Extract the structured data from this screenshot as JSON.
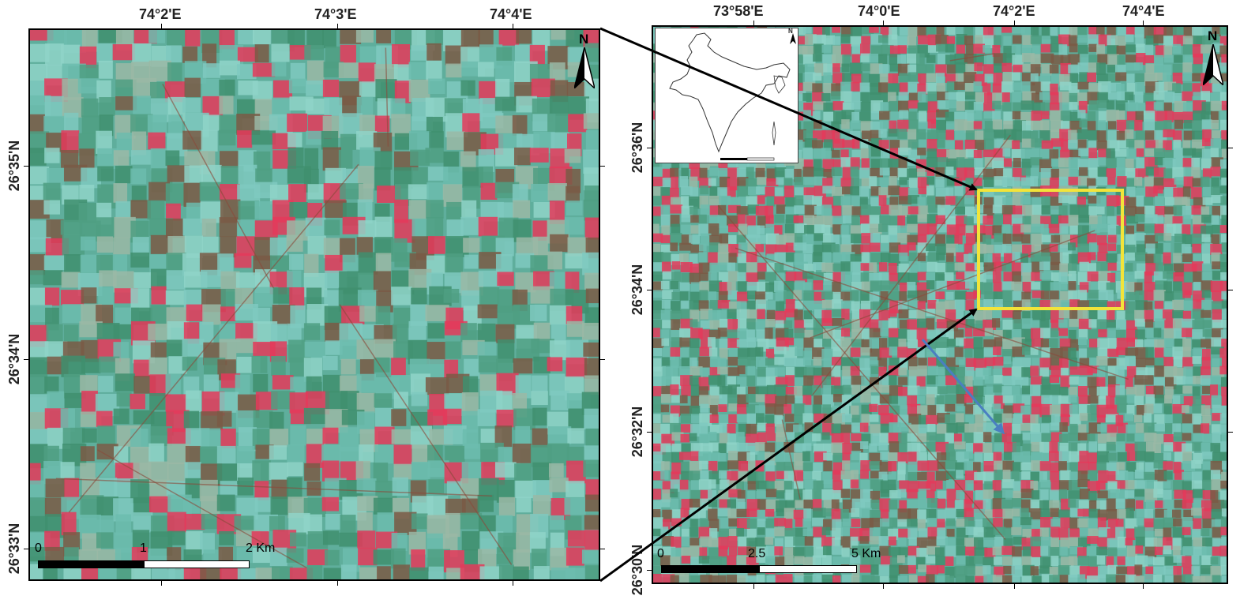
{
  "left_map": {
    "top_ticks": [
      "74°2'E",
      "74°3'E",
      "74°4'E"
    ],
    "left_ticks": [
      "26°35'N",
      "26°34'N",
      "26°33'N"
    ],
    "north_label": "N",
    "scale": {
      "zero": "0",
      "mid": "1",
      "end": "2 Km"
    }
  },
  "right_map": {
    "top_ticks": [
      "73°58'E",
      "74°0'E",
      "74°2'E",
      "74°4'E"
    ],
    "left_ticks": [
      "26°36'N",
      "26°34'N",
      "26°32'N",
      "26°30'N"
    ],
    "north_label": "N",
    "scale": {
      "zero": "0",
      "mid": "2.5",
      "end": "5 Km"
    },
    "inset_north_label": "N"
  },
  "colors": {
    "field_cyan": "#7fc9c0",
    "field_green": "#3f8f6e",
    "field_red": "#e43a5a",
    "field_brown": "#7a5a45",
    "highlight_box": "#f2e43a",
    "pointer_arrow": "#000000",
    "blue_arrow": "#4a7fc1"
  }
}
